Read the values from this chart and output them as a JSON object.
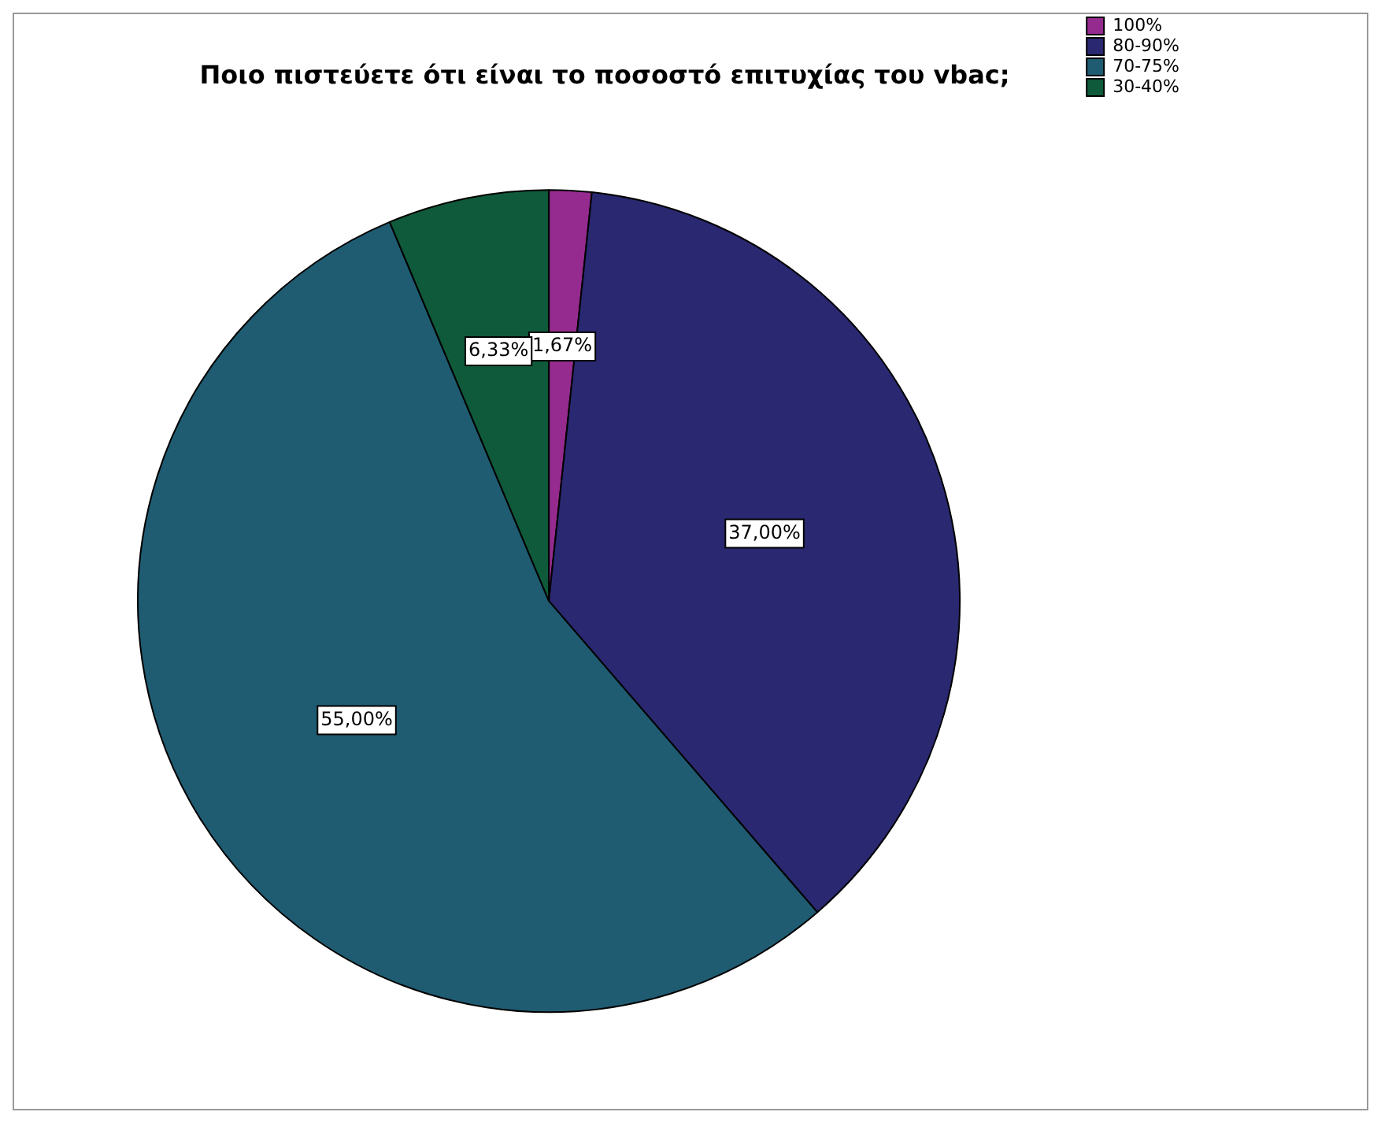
{
  "chart_data": {
    "type": "pie",
    "title": "Ποιο πιστεύετε ότι είναι το ποσοστό επιτυχίας του vbac;",
    "categories": [
      "100%",
      "80-90%",
      "70-75%",
      "30-40%"
    ],
    "values": [
      1.67,
      37.0,
      55.0,
      6.33
    ],
    "value_labels": [
      "1,67%",
      "37,00%",
      "55,00%",
      "6,33%"
    ],
    "colors": [
      "#952b8f",
      "#2a2870",
      "#1f5c72",
      "#0f5a3a"
    ],
    "legend": "top right"
  }
}
